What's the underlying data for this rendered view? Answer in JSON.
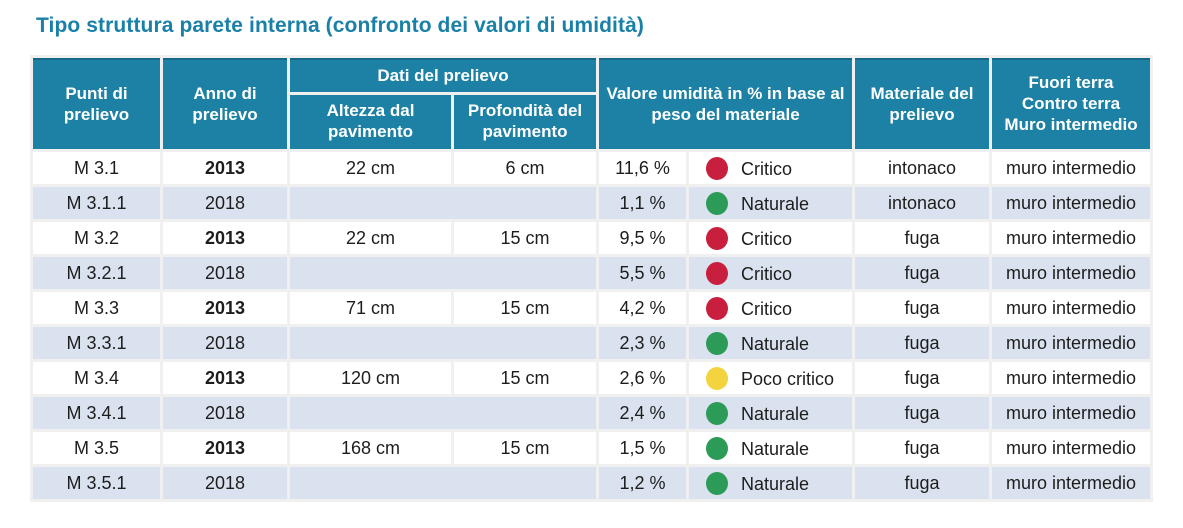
{
  "title": "Tipo struttura parete interna (confronto dei valori di umidità)",
  "colors": {
    "header_bg": "#1c81a5",
    "header_top_border": "#156a8a",
    "title_text": "#1a80a8",
    "row_bg": "#ffffff",
    "row_alt_bg": "#d9e2ee",
    "dot_red": "#c71f3d",
    "dot_green": "#2d9b58",
    "dot_yellow": "#f3d43e"
  },
  "table": {
    "headers": {
      "punti": "Punti di prelievo",
      "anno": "Anno di prelievo",
      "dati": "Dati del prelievo",
      "altezza": "Altezza dal pavimento",
      "profondita": "Profondità del pavimento",
      "valore": "Valore umidità in % in base al peso del materiale",
      "materiale": "Materiale del prelievo",
      "fuori": "Fuori terra\nContro terra\nMuro intermedio"
    },
    "rows": [
      {
        "punto": "M 3.1",
        "anno": "2013",
        "anno_bold": true,
        "merged": false,
        "altezza": "22 cm",
        "profondita": "6 cm",
        "valore": "11,6 %",
        "stato": "Critico",
        "dot": "red",
        "materiale": "intonaco",
        "posizione": "muro intermedio",
        "alt": false
      },
      {
        "punto": "M 3.1.1",
        "anno": "2018",
        "anno_bold": false,
        "merged": true,
        "altezza": "",
        "profondita": "",
        "valore": "1,1 %",
        "stato": "Naturale",
        "dot": "green",
        "materiale": "intonaco",
        "posizione": "muro intermedio",
        "alt": true
      },
      {
        "punto": "M 3.2",
        "anno": "2013",
        "anno_bold": true,
        "merged": false,
        "altezza": "22 cm",
        "profondita": "15 cm",
        "valore": "9,5 %",
        "stato": "Critico",
        "dot": "red",
        "materiale": "fuga",
        "posizione": "muro intermedio",
        "alt": false
      },
      {
        "punto": "M 3.2.1",
        "anno": "2018",
        "anno_bold": false,
        "merged": true,
        "altezza": "",
        "profondita": "",
        "valore": "5,5 %",
        "stato": "Critico",
        "dot": "red",
        "materiale": "fuga",
        "posizione": "muro intermedio",
        "alt": true
      },
      {
        "punto": "M 3.3",
        "anno": "2013",
        "anno_bold": true,
        "merged": false,
        "altezza": "71 cm",
        "profondita": "15 cm",
        "valore": "4,2 %",
        "stato": "Critico",
        "dot": "red",
        "materiale": "fuga",
        "posizione": "muro intermedio",
        "alt": false
      },
      {
        "punto": "M 3.3.1",
        "anno": "2018",
        "anno_bold": false,
        "merged": true,
        "altezza": "",
        "profondita": "",
        "valore": "2,3 %",
        "stato": "Naturale",
        "dot": "green",
        "materiale": "fuga",
        "posizione": "muro intermedio",
        "alt": true
      },
      {
        "punto": "M 3.4",
        "anno": "2013",
        "anno_bold": true,
        "merged": false,
        "altezza": "120 cm",
        "profondita": "15 cm",
        "valore": "2,6 %",
        "stato": "Poco critico",
        "dot": "yellow",
        "materiale": "fuga",
        "posizione": "muro intermedio",
        "alt": false
      },
      {
        "punto": "M 3.4.1",
        "anno": "2018",
        "anno_bold": false,
        "merged": true,
        "altezza": "",
        "profondita": "",
        "valore": "2,4 %",
        "stato": "Naturale",
        "dot": "green",
        "materiale": "fuga",
        "posizione": "muro intermedio",
        "alt": true
      },
      {
        "punto": "M 3.5",
        "anno": "2013",
        "anno_bold": true,
        "merged": false,
        "altezza": "168 cm",
        "profondita": "15 cm",
        "valore": "1,5 %",
        "stato": "Naturale",
        "dot": "green",
        "materiale": "fuga",
        "posizione": "muro intermedio",
        "alt": false
      },
      {
        "punto": "M 3.5.1",
        "anno": "2018",
        "anno_bold": false,
        "merged": true,
        "altezza": "",
        "profondita": "",
        "valore": "1,2 %",
        "stato": "Naturale",
        "dot": "green",
        "materiale": "fuga",
        "posizione": "muro intermedio",
        "alt": true
      }
    ]
  },
  "chart_data": {
    "type": "table",
    "title": "Tipo struttura parete interna (confronto dei valori di umidità)",
    "columns": [
      "Punti di prelievo",
      "Anno di prelievo",
      "Altezza dal pavimento",
      "Profondità del pavimento",
      "Valore umidità in % in base al peso del materiale",
      "Stato",
      "Materiale del prelievo",
      "Fuori terra / Contro terra / Muro intermedio"
    ],
    "rows": [
      [
        "M 3.1",
        "2013",
        "22 cm",
        "6 cm",
        "11,6 %",
        "Critico",
        "intonaco",
        "muro intermedio"
      ],
      [
        "M 3.1.1",
        "2018",
        "",
        "",
        "1,1 %",
        "Naturale",
        "intonaco",
        "muro intermedio"
      ],
      [
        "M 3.2",
        "2013",
        "22 cm",
        "15 cm",
        "9,5 %",
        "Critico",
        "fuga",
        "muro intermedio"
      ],
      [
        "M 3.2.1",
        "2018",
        "",
        "",
        "5,5 %",
        "Critico",
        "fuga",
        "muro intermedio"
      ],
      [
        "M 3.3",
        "2013",
        "71 cm",
        "15 cm",
        "4,2 %",
        "Critico",
        "fuga",
        "muro intermedio"
      ],
      [
        "M 3.3.1",
        "2018",
        "",
        "",
        "2,3 %",
        "Naturale",
        "fuga",
        "muro intermedio"
      ],
      [
        "M 3.4",
        "2013",
        "120 cm",
        "15 cm",
        "2,6 %",
        "Poco critico",
        "fuga",
        "muro intermedio"
      ],
      [
        "M 3.4.1",
        "2018",
        "",
        "",
        "2,4 %",
        "Naturale",
        "fuga",
        "muro intermedio"
      ],
      [
        "M 3.5",
        "2013",
        "168 cm",
        "15 cm",
        "1,5 %",
        "Naturale",
        "fuga",
        "muro intermedio"
      ],
      [
        "M 3.5.1",
        "2018",
        "",
        "",
        "1,2 %",
        "Naturale",
        "fuga",
        "muro intermedio"
      ]
    ],
    "status_legend": {
      "Critico": "red",
      "Poco critico": "yellow",
      "Naturale": "green"
    }
  }
}
